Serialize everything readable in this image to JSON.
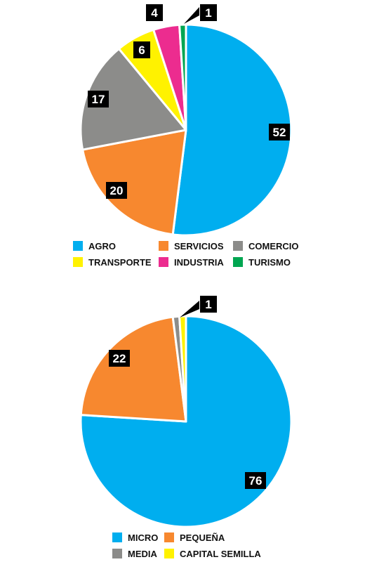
{
  "chart_data": [
    {
      "type": "pie",
      "categories": [
        "AGRO",
        "SERVICIOS",
        "COMERCIO",
        "TRANSPORTE",
        "INDUSTRIA",
        "TURISMO"
      ],
      "values": [
        52,
        20,
        17,
        6,
        4,
        1
      ],
      "data_labels": [
        "52",
        "20",
        "17",
        "6",
        "4",
        "1"
      ],
      "colors": [
        "#00aeef",
        "#f7882f",
        "#8c8c8a",
        "#fff200",
        "#ec2c8f",
        "#00a651"
      ],
      "legend": [
        {
          "label": "AGRO",
          "color": "#00aeef"
        },
        {
          "label": "SERVICIOS",
          "color": "#f7882f"
        },
        {
          "label": "COMERCIO",
          "color": "#8c8c8a"
        },
        {
          "label": "TRANSPORTE",
          "color": "#fff200"
        },
        {
          "label": "INDUSTRIA",
          "color": "#ec2c8f"
        },
        {
          "label": "TURISMO",
          "color": "#00a651"
        }
      ],
      "legend_position": "bottom"
    },
    {
      "type": "pie",
      "categories": [
        "MICRO",
        "PEQUEÑA",
        "MEDIA",
        "CAPITAL SEMILLA"
      ],
      "values": [
        76,
        22,
        1,
        1
      ],
      "data_labels": [
        "76",
        "22",
        "",
        "1"
      ],
      "colors": [
        "#00aeef",
        "#f7882f",
        "#8c8c8a",
        "#fff200"
      ],
      "legend": [
        {
          "label": "MICRO",
          "color": "#00aeef"
        },
        {
          "label": "PEQUEÑA",
          "color": "#f7882f"
        },
        {
          "label": "MEDIA",
          "color": "#8c8c8a"
        },
        {
          "label": "CAPITAL SEMILLA",
          "color": "#fff200"
        }
      ],
      "legend_position": "bottom"
    }
  ]
}
